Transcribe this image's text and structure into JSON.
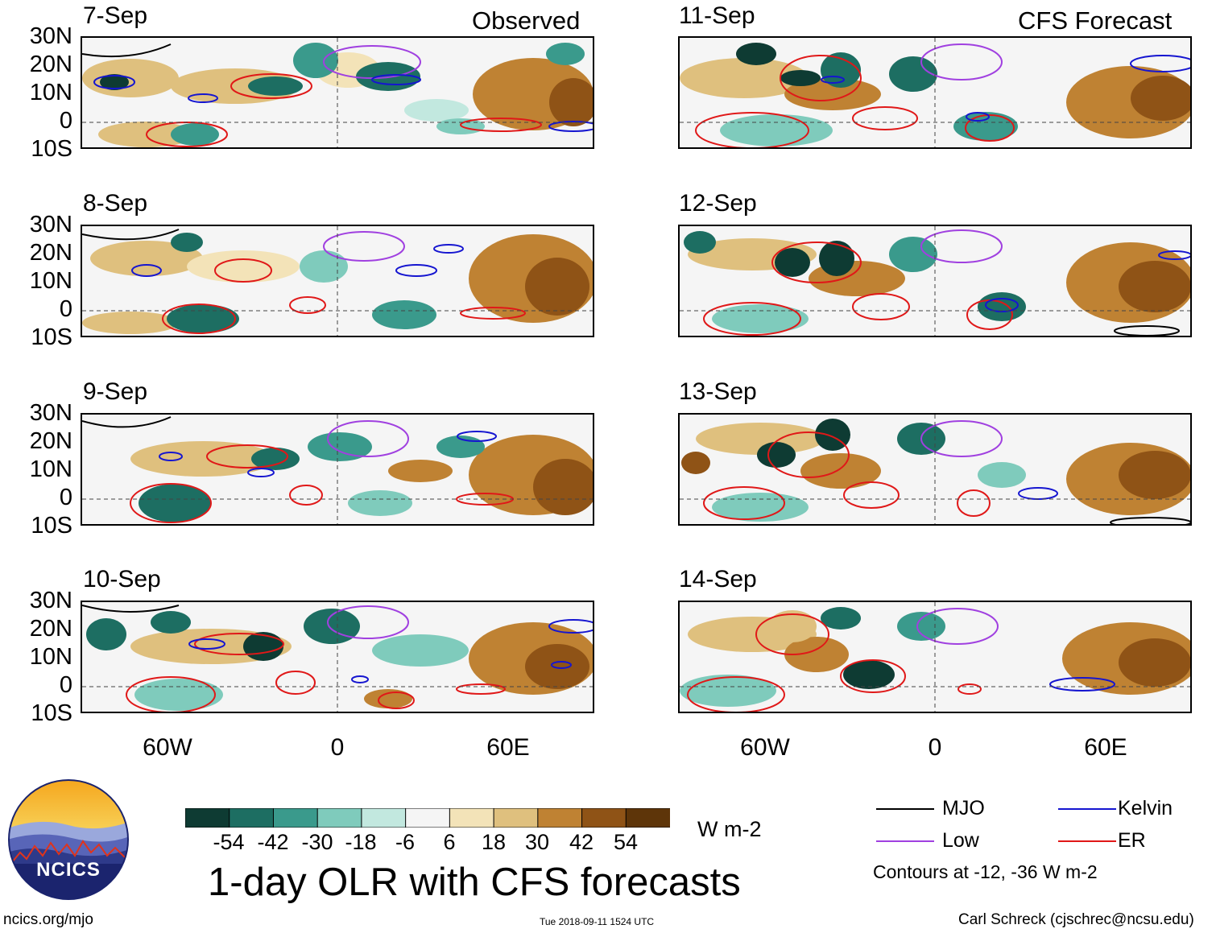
{
  "left_header": "Observed",
  "right_header": "CFS Forecast",
  "panels_observed": [
    {
      "date": "7-Sep"
    },
    {
      "date": "8-Sep"
    },
    {
      "date": "9-Sep"
    },
    {
      "date": "10-Sep"
    }
  ],
  "panels_forecast": [
    {
      "date": "11-Sep"
    },
    {
      "date": "12-Sep"
    },
    {
      "date": "13-Sep"
    },
    {
      "date": "14-Sep"
    }
  ],
  "lat_labels": [
    "30N",
    "20N",
    "10N",
    "0",
    "10S"
  ],
  "lon_labels": [
    "60W",
    "0",
    "60E"
  ],
  "colorbar": {
    "colors": [
      "#0e3b33",
      "#1d6e62",
      "#3a9a8c",
      "#7fcbbc",
      "#c2e8df",
      "#f5f5f5",
      "#f3e3b8",
      "#dfc07e",
      "#bf8233",
      "#8f5316",
      "#5e3509"
    ],
    "ticks": [
      "-54",
      "-42",
      "-30",
      "-18",
      "-6",
      "6",
      "18",
      "30",
      "42",
      "54"
    ],
    "units": "W m-2"
  },
  "title": "1-day OLR with CFS forecasts",
  "legend": {
    "items": [
      {
        "label": "MJO",
        "color": "#000000"
      },
      {
        "label": "Kelvin",
        "color": "#1515d0"
      },
      {
        "label": "Low",
        "color": "#a040e0"
      },
      {
        "label": "ER",
        "color": "#e01818"
      }
    ],
    "note": "Contours at -12, -36 W m-2"
  },
  "logo_text": "NCICS",
  "footer": {
    "url": "ncics.org/mjo",
    "timestamp": "Tue 2018-09-11 1524 UTC",
    "credit": "Carl Schreck (cjschrec@ncsu.edu)"
  }
}
